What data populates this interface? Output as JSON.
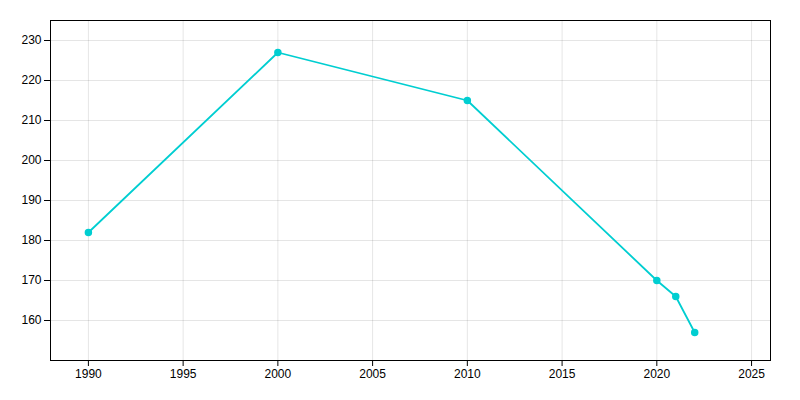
{
  "chart_data": {
    "type": "line",
    "x": [
      1990,
      2000,
      2010,
      2020,
      2021,
      2022
    ],
    "values": [
      182,
      227,
      215,
      170,
      166,
      157
    ],
    "color": "#00CED1",
    "marker": "circle",
    "xlim": [
      1988,
      2026
    ],
    "ylim": [
      150,
      235
    ],
    "xticks": [
      1990,
      1995,
      2000,
      2005,
      2010,
      2015,
      2020,
      2025
    ],
    "yticks": [
      160,
      170,
      180,
      190,
      200,
      210,
      220,
      230
    ],
    "grid": true
  }
}
